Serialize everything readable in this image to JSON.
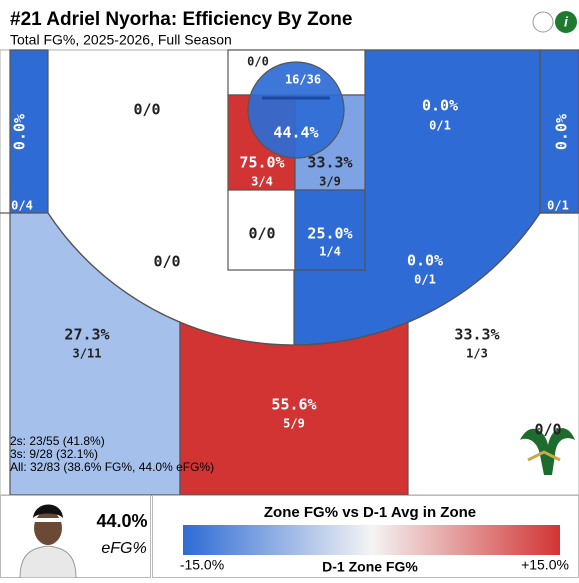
{
  "header": {
    "title": "#21 Adriel Nyorha: Efficiency By Zone",
    "subtitle": "Total FG%, 2025-2026, Full Season"
  },
  "info_icon": "i",
  "zones": [
    {
      "pct": "0.0%",
      "shots": "0/4"
    },
    {
      "shots": "0/0"
    },
    {
      "shots": "0/0"
    },
    {
      "pct": "44.4%",
      "shots": "16/36"
    },
    {
      "pct": "75.0%",
      "shots": "3/4"
    },
    {
      "pct": "33.3%",
      "shots": "3/9"
    },
    {
      "pct": "0.0%",
      "shots": "0/1"
    },
    {
      "pct": "0.0%",
      "shots": "0/1"
    },
    {
      "shots": "0/0"
    },
    {
      "pct": "25.0%",
      "shots": "1/4"
    },
    {
      "shots": "0/0"
    },
    {
      "pct": "0.0%",
      "shots": "0/1"
    },
    {
      "pct": "27.3%",
      "shots": "3/11"
    },
    {
      "pct": "33.3%",
      "shots": "1/3"
    },
    {
      "pct": "55.6%",
      "shots": "5/9"
    },
    {
      "shots": "0/0"
    }
  ],
  "summary": [
    "2s: 23/55 (41.8%)",
    "3s: 9/28 (32.1%)",
    "All: 32/83 (38.6% FG%, 44.0% eFG%)"
  ],
  "player": {
    "value": "44.0%",
    "label": "eFG%"
  },
  "legend": {
    "title": "Zone FG% vs D-1 Avg in Zone",
    "min": "-15.0%",
    "center": "D-1 Zone FG%",
    "max": "+15.0%"
  }
}
